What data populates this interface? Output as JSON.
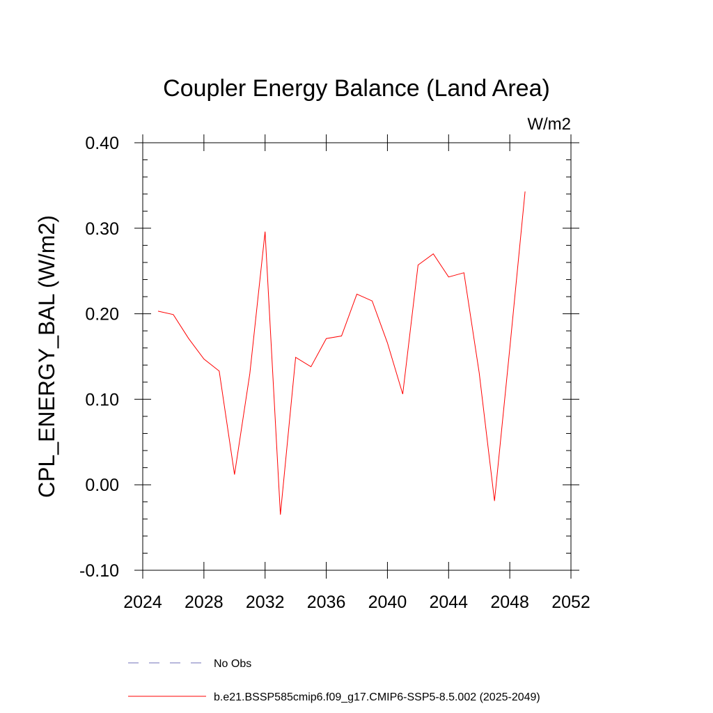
{
  "chart_data": {
    "type": "line",
    "title": "Coupler Energy Balance (Land Area)",
    "units_label": "W/m2",
    "xlabel": "",
    "ylabel": "CPL_ENERGY_BAL  (W/m2)",
    "xlim": [
      2024,
      2052
    ],
    "ylim": [
      -0.1,
      0.4
    ],
    "x_ticks": [
      2024,
      2028,
      2032,
      2036,
      2040,
      2044,
      2048,
      2052
    ],
    "x_tick_labels": [
      "2024",
      "2028",
      "2032",
      "2036",
      "2040",
      "2044",
      "2048",
      "2052"
    ],
    "y_ticks": [
      -0.1,
      0.0,
      0.1,
      0.2,
      0.3,
      0.4
    ],
    "y_tick_labels": [
      "-0.10",
      "0.00",
      "0.10",
      "0.20",
      "0.30",
      "0.40"
    ],
    "grid": false,
    "legend_position": "bottom",
    "series": [
      {
        "name": "b.e21.BSSP585cmip6.f09_g17.CMIP6-SSP5-8.5.002 (2025-2049)",
        "color": "#ff0000",
        "style": "solid",
        "x": [
          2025,
          2026,
          2027,
          2028,
          2029,
          2030,
          2031,
          2032,
          2033,
          2034,
          2035,
          2036,
          2037,
          2038,
          2039,
          2040,
          2041,
          2042,
          2043,
          2044,
          2045,
          2046,
          2047,
          2048,
          2049
        ],
        "values": [
          0.203,
          0.199,
          0.171,
          0.147,
          0.133,
          0.012,
          0.13,
          0.296,
          -0.035,
          0.149,
          0.138,
          0.171,
          0.174,
          0.223,
          0.215,
          0.166,
          0.106,
          0.257,
          0.27,
          0.243,
          0.248,
          0.131,
          -0.019,
          0.159,
          0.343
        ]
      }
    ],
    "legend": [
      {
        "label": "No Obs",
        "color": "#6f6fb8",
        "style": "dashed"
      },
      {
        "label": "b.e21.BSSP585cmip6.f09_g17.CMIP6-SSP5-8.5.002 (2025-2049)",
        "color": "#ff0000",
        "style": "solid"
      }
    ]
  }
}
